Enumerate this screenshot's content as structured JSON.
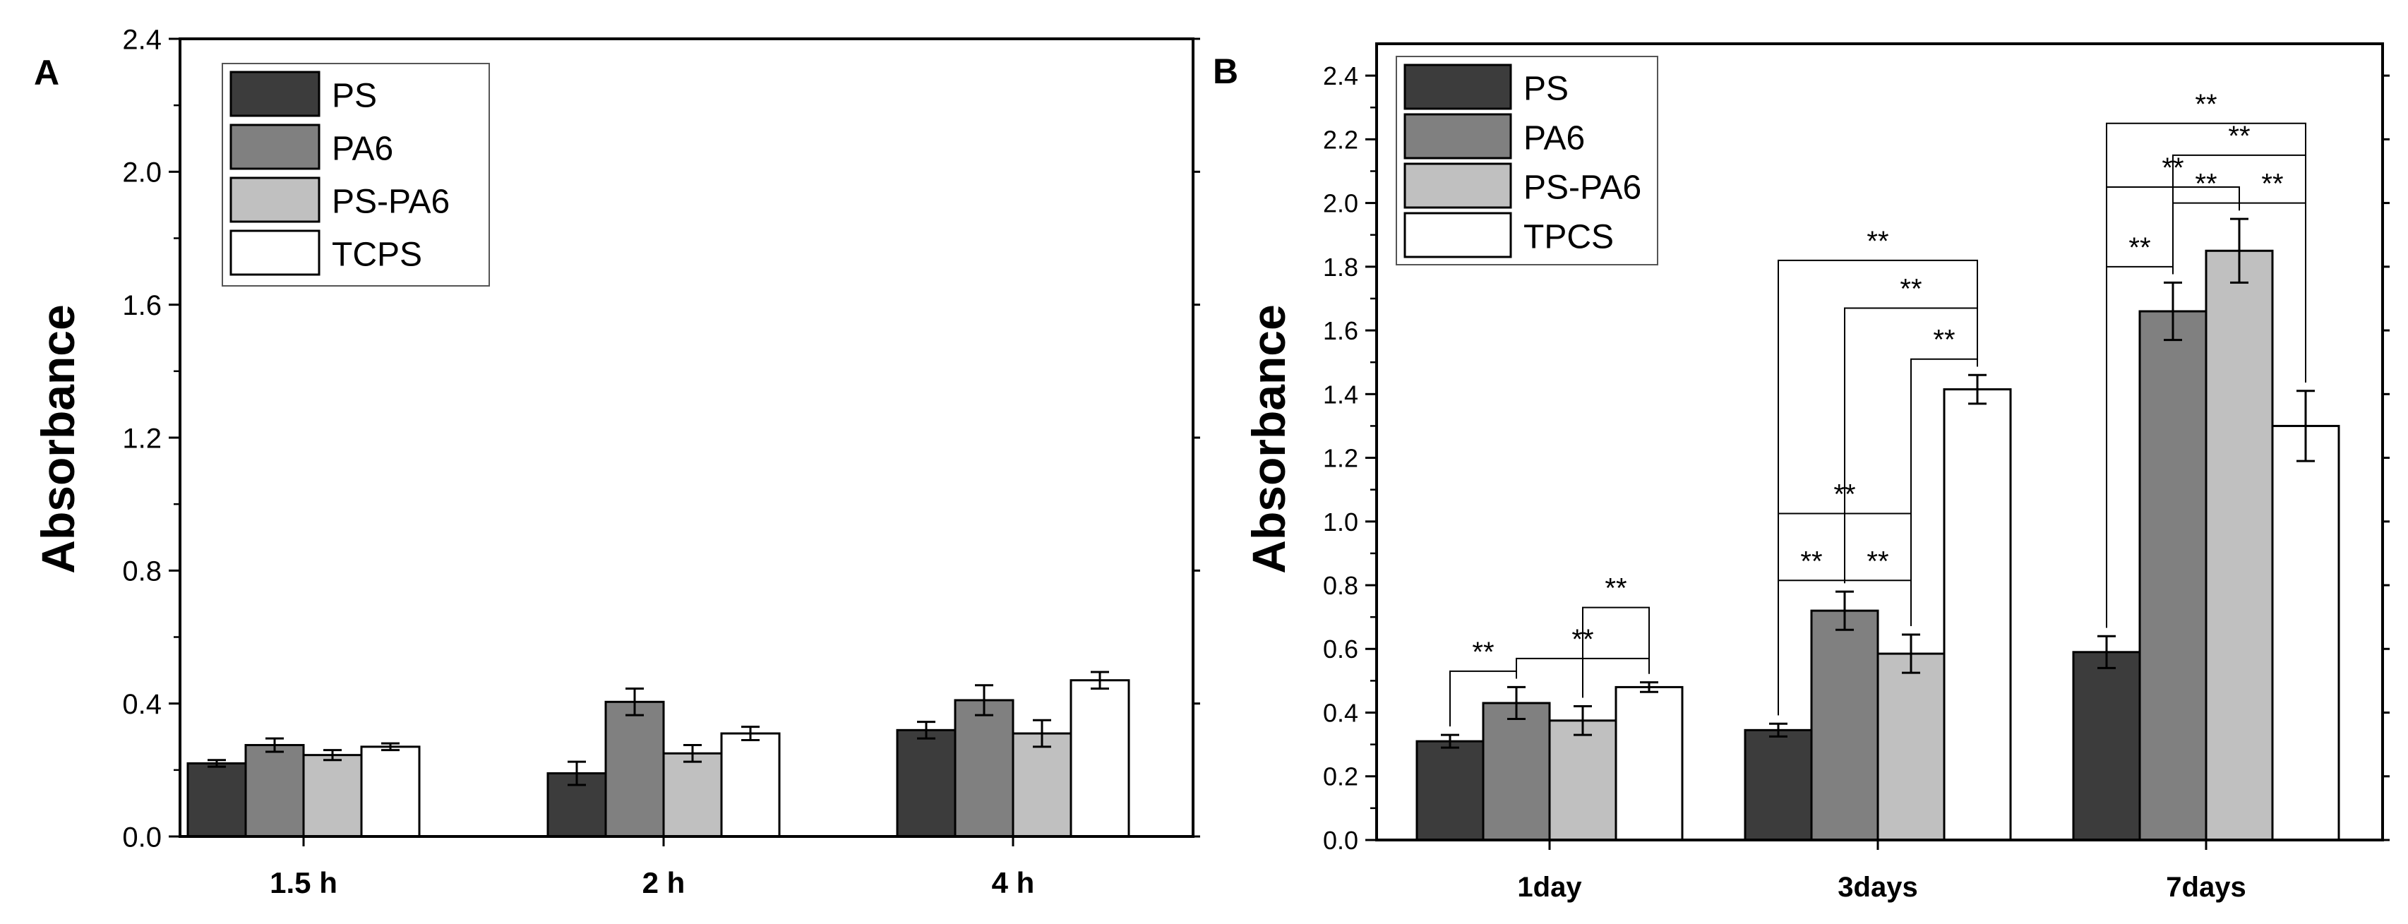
{
  "chart_data": [
    {
      "type": "bar",
      "panel_label": "A",
      "title": "",
      "xlabel": "",
      "ylabel": "Absorbance",
      "ylim": [
        0,
        2.4
      ],
      "yticks": [
        "0.0",
        "0.4",
        "0.8",
        "1.2",
        "1.6",
        "2.0",
        "2.4"
      ],
      "categories": [
        "1.5 h",
        "2 h",
        "4 h"
      ],
      "legend_position": "top-left",
      "series": [
        {
          "name": "PS",
          "color": "#3c3c3c",
          "values": [
            0.22,
            0.19,
            0.32
          ],
          "errors": [
            0.01,
            0.035,
            0.025
          ]
        },
        {
          "name": "PA6",
          "color": "#808080",
          "values": [
            0.275,
            0.405,
            0.41
          ],
          "errors": [
            0.02,
            0.04,
            0.045
          ]
        },
        {
          "name": "PS-PA6",
          "color": "#c0c0c0",
          "values": [
            0.245,
            0.25,
            0.31
          ],
          "errors": [
            0.015,
            0.025,
            0.04
          ]
        },
        {
          "name": "TCPS",
          "color": "#ffffff",
          "values": [
            0.27,
            0.31,
            0.47
          ],
          "errors": [
            0.01,
            0.02,
            0.025
          ]
        }
      ]
    },
    {
      "type": "bar",
      "panel_label": "B",
      "title": "",
      "xlabel": "",
      "ylabel": "Absorbance",
      "ylim": [
        0,
        2.5
      ],
      "yticks": [
        "0.0",
        "0.2",
        "0.4",
        "0.6",
        "0.8",
        "1.0",
        "1.2",
        "1.4",
        "1.6",
        "1.8",
        "2.0",
        "2.2",
        "2.4"
      ],
      "categories": [
        "1day",
        "3days",
        "7days"
      ],
      "legend_position": "top-left",
      "series": [
        {
          "name": "PS",
          "color": "#3c3c3c",
          "values": [
            0.31,
            0.345,
            0.59
          ],
          "errors": [
            0.02,
            0.02,
            0.05
          ]
        },
        {
          "name": "PA6",
          "color": "#808080",
          "values": [
            0.43,
            0.72,
            1.66
          ],
          "errors": [
            0.05,
            0.06,
            0.09
          ]
        },
        {
          "name": "PS-PA6",
          "color": "#c0c0c0",
          "values": [
            0.375,
            0.585,
            1.85
          ],
          "errors": [
            0.045,
            0.06,
            0.1
          ]
        },
        {
          "name": "TPCS",
          "color": "#ffffff",
          "values": [
            0.48,
            1.415,
            1.3
          ],
          "errors": [
            0.015,
            0.045,
            0.11
          ]
        }
      ],
      "annotations": [
        {
          "group": 0,
          "from": 0,
          "to": 1,
          "y": 0.53,
          "label": "**"
        },
        {
          "group": 0,
          "from": 1,
          "to": 3,
          "y": 0.57,
          "label": "**"
        },
        {
          "group": 0,
          "from": 2,
          "to": 3,
          "y": 0.73,
          "label": "**"
        },
        {
          "group": 1,
          "from": 0,
          "to": 1,
          "y": 0.815,
          "label": "**"
        },
        {
          "group": 1,
          "from": 1,
          "to": 2,
          "y": 0.815,
          "label": "**"
        },
        {
          "group": 1,
          "from": 0,
          "to": 2,
          "y": 1.025,
          "label": "**"
        },
        {
          "group": 1,
          "from": 2,
          "to": 3,
          "y": 1.51,
          "label": "**"
        },
        {
          "group": 1,
          "from": 1,
          "to": 3,
          "y": 1.67,
          "label": "**"
        },
        {
          "group": 1,
          "from": 0,
          "to": 3,
          "y": 1.82,
          "label": "**"
        },
        {
          "group": 2,
          "from": 0,
          "to": 1,
          "y": 1.8,
          "label": "**"
        },
        {
          "group": 2,
          "from": 0,
          "to": 2,
          "y": 2.05,
          "label": "**"
        },
        {
          "group": 2,
          "from": 1,
          "to": 2,
          "y": 2.0,
          "label": "**"
        },
        {
          "group": 2,
          "from": 2,
          "to": 3,
          "y": 2.0,
          "label": "**"
        },
        {
          "group": 2,
          "from": 1,
          "to": 3,
          "y": 2.15,
          "label": "**"
        },
        {
          "group": 2,
          "from": 0,
          "to": 3,
          "y": 2.25,
          "label": "**"
        }
      ]
    }
  ]
}
